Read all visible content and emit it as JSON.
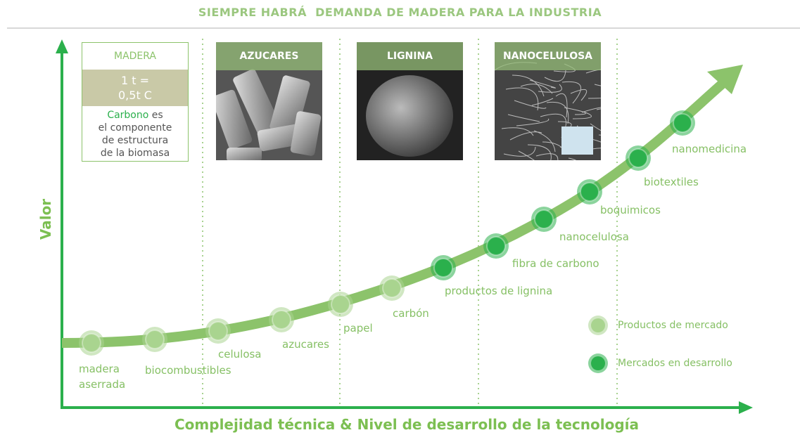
{
  "title": "SIEMPRE HABRÁ  DEMANDA DE MADERA PARA LA INDUSTRIA",
  "y_axis_label": "Valor",
  "x_axis_label": "Complejidad técnica & Nivel de desarrollo de la tecnología",
  "madera_box": {
    "title": "MADERA",
    "ratio": "1 t =\n0,5t C",
    "note_highlight": "Carbono",
    "note_rest": " es\nel componente\nde estructura\nde la biomasa"
  },
  "photos": [
    {
      "label": "AZUCARES"
    },
    {
      "label": "LIGNINA"
    },
    {
      "label": "NANOCELULOSA"
    }
  ],
  "groups": [
    {
      "name": "Productos de mercado",
      "color": "#a9d48f",
      "nodes": [
        "madera\naserrada",
        "biocombustibles",
        "celulosa",
        "azucares",
        "papel",
        "carbón"
      ]
    },
    {
      "name": "Mercados en desarrollo",
      "color": "#2bb04c",
      "nodes": [
        "productos de lignina",
        "fibra de carbono",
        "nanocelulosa",
        "boquimicos",
        "biotextiles",
        "nanomedicina"
      ]
    }
  ]
}
